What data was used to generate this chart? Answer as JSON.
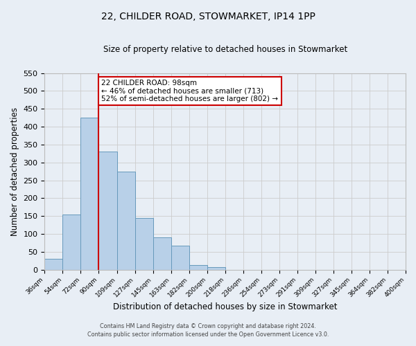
{
  "title": "22, CHILDER ROAD, STOWMARKET, IP14 1PP",
  "subtitle": "Size of property relative to detached houses in Stowmarket",
  "xlabel": "Distribution of detached houses by size in Stowmarket",
  "ylabel": "Number of detached properties",
  "footer_line1": "Contains HM Land Registry data © Crown copyright and database right 2024.",
  "footer_line2": "Contains public sector information licensed under the Open Government Licence v3.0.",
  "bin_labels": [
    "36sqm",
    "54sqm",
    "72sqm",
    "90sqm",
    "109sqm",
    "127sqm",
    "145sqm",
    "163sqm",
    "182sqm",
    "200sqm",
    "218sqm",
    "236sqm",
    "254sqm",
    "273sqm",
    "291sqm",
    "309sqm",
    "327sqm",
    "345sqm",
    "364sqm",
    "382sqm",
    "400sqm"
  ],
  "bar_values": [
    30,
    155,
    425,
    330,
    275,
    145,
    90,
    67,
    13,
    8,
    0,
    0,
    0,
    0,
    0,
    0,
    0,
    0,
    0,
    0
  ],
  "bar_color": "#b8d0e8",
  "bar_edge_color": "#6699bb",
  "vline_bin_index": 3,
  "vline_color": "#cc0000",
  "annotation_line1": "22 CHILDER ROAD: 98sqm",
  "annotation_line2": "← 46% of detached houses are smaller (713)",
  "annotation_line3": "52% of semi-detached houses are larger (802) →",
  "annotation_box_color": "#ffffff",
  "annotation_box_edge_color": "#cc0000",
  "ylim": [
    0,
    550
  ],
  "yticks": [
    0,
    50,
    100,
    150,
    200,
    250,
    300,
    350,
    400,
    450,
    500,
    550
  ],
  "grid_color": "#cccccc",
  "bg_color": "#e8eef5",
  "plot_bg_color": "#e8eef5"
}
